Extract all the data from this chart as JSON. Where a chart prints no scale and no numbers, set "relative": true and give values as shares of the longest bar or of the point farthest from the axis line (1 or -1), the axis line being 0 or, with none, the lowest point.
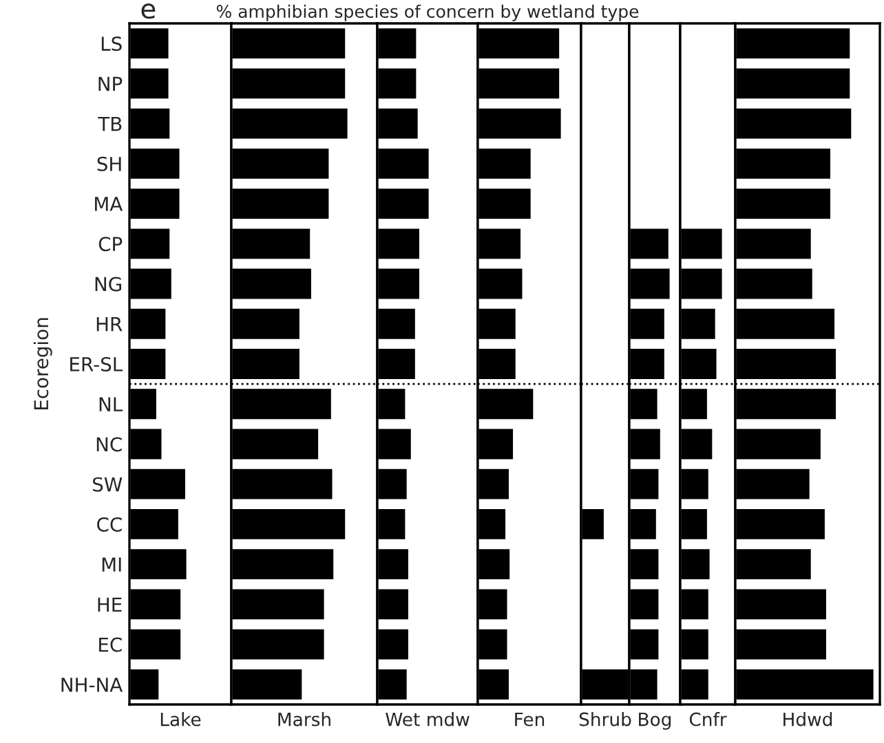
{
  "chart_data": [
    {
      "type": "bar",
      "orientation": "horizontal",
      "relative": true,
      "ylabel": "Ecoregion",
      "xlabel": "Lake",
      "annotations": [
        "e"
      ],
      "tick_labels": "y",
      "categories": [
        "LS",
        "NP",
        "TB",
        "SH",
        "MA",
        "CP",
        "NG",
        "HR",
        "ER-SL",
        "NL",
        "NC",
        "SW",
        "CC",
        "MI",
        "HE",
        "EC",
        "NH-NA"
      ],
      "color": "#000000",
      "values": [
        0.69,
        0.69,
        0.71,
        0.88,
        0.88,
        0.71,
        0.74,
        0.64,
        0.64,
        0.48,
        0.57,
        0.98,
        0.86,
        1,
        0.9,
        0.9,
        0.52
      ]
    },
    {
      "type": "bar",
      "orientation": "horizontal",
      "relative": true,
      "xlabel": "Marsh",
      "tick_labels": false,
      "color": "#000000",
      "values": [
        0.98,
        0.98,
        1,
        0.84,
        0.84,
        0.68,
        0.69,
        0.59,
        0.59,
        0.86,
        0.75,
        0.87,
        0.98,
        0.88,
        0.8,
        0.8,
        0.61
      ]
    },
    {
      "type": "bar",
      "orientation": "horizontal",
      "relative": true,
      "title": "% amphibian species of concern by wetland type",
      "xlabel": "Wet mdw",
      "tick_labels": false,
      "color": "#000000",
      "values": [
        0.76,
        0.76,
        0.79,
        1,
        1,
        0.82,
        0.82,
        0.74,
        0.74,
        0.55,
        0.66,
        0.58,
        0.55,
        0.61,
        0.61,
        0.61,
        0.58
      ]
    },
    {
      "type": "bar",
      "orientation": "horizontal",
      "relative": true,
      "xlabel": "Fen",
      "tick_labels": false,
      "color": "#000000",
      "values": [
        0.98,
        0.98,
        1,
        0.64,
        0.64,
        0.52,
        0.54,
        0.46,
        0.46,
        0.67,
        0.43,
        0.38,
        0.34,
        0.39,
        0.36,
        0.36,
        0.38
      ]
    },
    {
      "type": "bar",
      "orientation": "horizontal",
      "relative": true,
      "xlabel": "Shrub",
      "tick_labels": false,
      "color": "#000000",
      "values": [
        null,
        null,
        null,
        null,
        null,
        null,
        null,
        null,
        null,
        null,
        null,
        null,
        0.49,
        null,
        null,
        null,
        1
      ]
    },
    {
      "type": "bar",
      "orientation": "horizontal",
      "relative": true,
      "xlabel": "Bog",
      "tick_labels": false,
      "color": "#000000",
      "values": [
        null,
        null,
        null,
        null,
        null,
        0.97,
        1,
        0.87,
        0.87,
        0.7,
        0.77,
        0.73,
        0.67,
        0.73,
        0.73,
        0.73,
        0.7
      ]
    },
    {
      "type": "bar",
      "orientation": "horizontal",
      "relative": true,
      "xlabel": "Cnfr",
      "tick_labels": false,
      "color": "#000000",
      "values": [
        null,
        null,
        null,
        null,
        null,
        1,
        1,
        0.84,
        0.87,
        0.65,
        0.77,
        0.68,
        0.65,
        0.71,
        0.68,
        0.68,
        0.68
      ]
    },
    {
      "type": "bar",
      "orientation": "horizontal",
      "relative": true,
      "xlabel": "Hdwd",
      "tick_labels": false,
      "color": "#000000",
      "values": [
        0.83,
        0.83,
        0.84,
        0.69,
        0.69,
        0.55,
        0.56,
        0.72,
        0.73,
        0.73,
        0.62,
        0.54,
        0.65,
        0.55,
        0.66,
        0.66,
        1
      ]
    }
  ]
}
